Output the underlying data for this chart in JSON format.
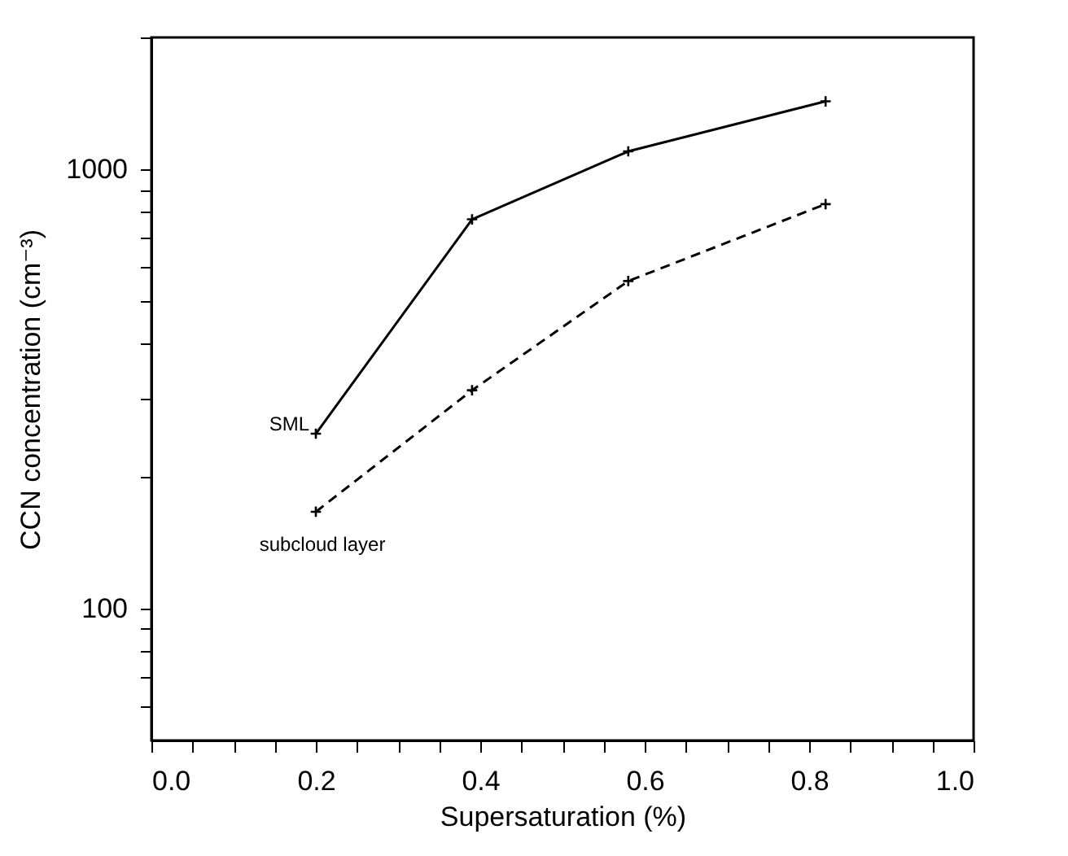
{
  "chart_data": {
    "type": "line",
    "xlabel": "Supersaturation (%)",
    "ylabel": "CCN concentration (cm⁻³)",
    "x": [
      0.2,
      0.39,
      0.58,
      0.82
    ],
    "series": [
      {
        "name": "SML",
        "color": "#000000",
        "line_style": "solid",
        "values": [
          250,
          770,
          1100,
          1430
        ]
      },
      {
        "name": "subcloud layer",
        "color": "#000000",
        "line_style": "dashed",
        "values": [
          166,
          314,
          557,
          834
        ]
      }
    ],
    "log": "y",
    "xlim": [
      0,
      1
    ],
    "ylim": [
      50,
      2000
    ],
    "xticks": [
      {
        "value": 0,
        "label": "0.0"
      },
      {
        "value": 0.05,
        "label": null
      },
      {
        "value": 0.1,
        "label": null
      },
      {
        "value": 0.15,
        "label": null
      },
      {
        "value": 0.2,
        "label": "0.2"
      },
      {
        "value": 0.25,
        "label": null
      },
      {
        "value": 0.3,
        "label": null
      },
      {
        "value": 0.35,
        "label": null
      },
      {
        "value": 0.4,
        "label": "0.4"
      },
      {
        "value": 0.45,
        "label": null
      },
      {
        "value": 0.5,
        "label": null
      },
      {
        "value": 0.55,
        "label": null
      },
      {
        "value": 0.6,
        "label": "0.6"
      },
      {
        "value": 0.65,
        "label": null
      },
      {
        "value": 0.7,
        "label": null
      },
      {
        "value": 0.75,
        "label": null
      },
      {
        "value": 0.8,
        "label": "0.8"
      },
      {
        "value": 0.85,
        "label": null
      },
      {
        "value": 0.9,
        "label": null
      },
      {
        "value": 0.95,
        "label": null
      },
      {
        "value": 1,
        "label": "1.0"
      }
    ],
    "yticks": [
      {
        "value": 60,
        "label": null
      },
      {
        "value": 70,
        "label": null
      },
      {
        "value": 80,
        "label": null
      },
      {
        "value": 90,
        "label": null
      },
      100,
      {
        "value": 200,
        "label": null
      },
      {
        "value": 300,
        "label": null
      },
      {
        "value": 400,
        "label": null
      },
      {
        "value": 500,
        "label": null
      },
      {
        "value": 600,
        "label": null
      },
      {
        "value": 700,
        "label": null
      },
      {
        "value": 800,
        "label": null
      },
      {
        "value": 900,
        "label": null
      },
      1000,
      {
        "value": 2000,
        "label": null
      }
    ],
    "grid": false,
    "legend": false,
    "marker": "cross"
  }
}
